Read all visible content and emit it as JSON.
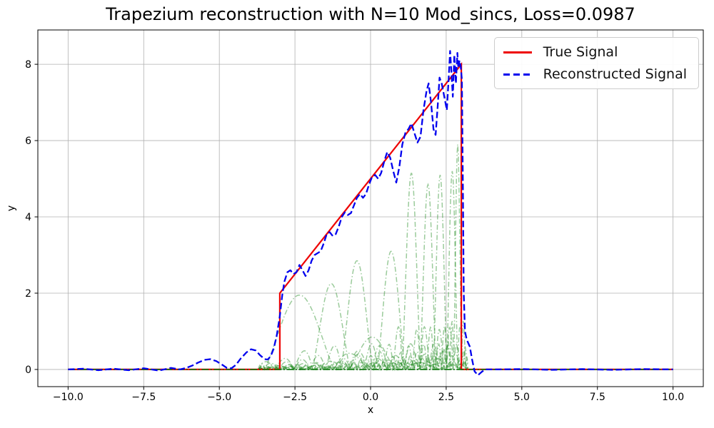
{
  "figure": {
    "title": "Trapezium reconstruction with N=10 Mod_sincs, Loss=0.0987",
    "xlabel": "x",
    "ylabel": "y",
    "background": "#ffffff"
  },
  "legend": {
    "position": "upper right",
    "items": [
      {
        "label": "True Signal",
        "color": "#ee0000",
        "line_style": "solid"
      },
      {
        "label": "Reconstructed Signal",
        "color": "#0000ee",
        "line_style": "dashed"
      }
    ]
  },
  "axes": {
    "grid": true,
    "grid_color": "#b0b0b0",
    "spine_color": "#000000",
    "tick_label_color": "#000000"
  },
  "chart_data": {
    "type": "line",
    "title": "Trapezium reconstruction with N=10 Mod_sincs, Loss=0.0987",
    "xlabel": "x",
    "ylabel": "y",
    "xlim": [
      -11,
      11
    ],
    "ylim": [
      -0.45,
      8.9
    ],
    "x_ticks": {
      "values": [
        -10,
        -7.5,
        -5,
        -2.5,
        0,
        2.5,
        5,
        7.5,
        10
      ],
      "labels": [
        "−10.0",
        "−7.5",
        "−5.0",
        "−2.5",
        "0.0",
        "2.5",
        "5.0",
        "7.5",
        "10.0"
      ]
    },
    "y_ticks": {
      "values": [
        0,
        2,
        4,
        6,
        8
      ],
      "labels": [
        "0",
        "2",
        "4",
        "6",
        "8"
      ]
    },
    "grid": true,
    "legend_position": "upper right",
    "series": [
      {
        "name": "True Signal",
        "color": "#ee0000",
        "style": "solid",
        "width": 2.2,
        "points": [
          [
            -10,
            0
          ],
          [
            -3,
            0
          ],
          [
            -3,
            2
          ],
          [
            3,
            8
          ],
          [
            3,
            0
          ],
          [
            10,
            0
          ]
        ]
      },
      {
        "name": "Reconstructed Signal",
        "color": "#0000ee",
        "style": "dashed",
        "width": 2.3,
        "points": [
          [
            -10,
            0
          ],
          [
            -9.5,
            0.02
          ],
          [
            -9,
            -0.02
          ],
          [
            -8.5,
            0.02
          ],
          [
            -8,
            -0.02
          ],
          [
            -7.5,
            0.03
          ],
          [
            -7,
            -0.03
          ],
          [
            -6.6,
            0.04
          ],
          [
            -6.3,
            0
          ],
          [
            -6.1,
            0.04
          ],
          [
            -5.9,
            0.1
          ],
          [
            -5.7,
            0.18
          ],
          [
            -5.5,
            0.25
          ],
          [
            -5.3,
            0.27
          ],
          [
            -5.1,
            0.22
          ],
          [
            -4.9,
            0.12
          ],
          [
            -4.75,
            0.04
          ],
          [
            -4.6,
            0.03
          ],
          [
            -4.45,
            0.12
          ],
          [
            -4.3,
            0.28
          ],
          [
            -4.1,
            0.45
          ],
          [
            -3.95,
            0.53
          ],
          [
            -3.8,
            0.5
          ],
          [
            -3.65,
            0.37
          ],
          [
            -3.5,
            0.27
          ],
          [
            -3.4,
            0.26
          ],
          [
            -3.3,
            0.35
          ],
          [
            -3.2,
            0.55
          ],
          [
            -3.1,
            0.9
          ],
          [
            -3,
            1.4
          ],
          [
            -2.92,
            1.95
          ],
          [
            -2.85,
            2.3
          ],
          [
            -2.75,
            2.55
          ],
          [
            -2.65,
            2.6
          ],
          [
            -2.55,
            2.5
          ],
          [
            -2.45,
            2.55
          ],
          [
            -2.35,
            2.74
          ],
          [
            -2.25,
            2.6
          ],
          [
            -2.15,
            2.45
          ],
          [
            -2.05,
            2.6
          ],
          [
            -1.95,
            2.85
          ],
          [
            -1.85,
            3
          ],
          [
            -1.75,
            3.05
          ],
          [
            -1.65,
            3.1
          ],
          [
            -1.55,
            3.3
          ],
          [
            -1.45,
            3.55
          ],
          [
            -1.35,
            3.6
          ],
          [
            -1.25,
            3.5
          ],
          [
            -1.15,
            3.55
          ],
          [
            -1.05,
            3.75
          ],
          [
            -0.95,
            4
          ],
          [
            -0.85,
            4.12
          ],
          [
            -0.75,
            4.05
          ],
          [
            -0.65,
            4.1
          ],
          [
            -0.55,
            4.3
          ],
          [
            -0.45,
            4.5
          ],
          [
            -0.35,
            4.6
          ],
          [
            -0.25,
            4.5
          ],
          [
            -0.15,
            4.6
          ],
          [
            -0.05,
            4.85
          ],
          [
            0.05,
            5.05
          ],
          [
            0.15,
            5.1
          ],
          [
            0.25,
            5
          ],
          [
            0.35,
            5.15
          ],
          [
            0.45,
            5.45
          ],
          [
            0.55,
            5.7
          ],
          [
            0.65,
            5.55
          ],
          [
            0.75,
            5.2
          ],
          [
            0.85,
            4.9
          ],
          [
            0.95,
            5.3
          ],
          [
            1.05,
            5.9
          ],
          [
            1.15,
            6.2
          ],
          [
            1.25,
            6.3
          ],
          [
            1.35,
            6.45
          ],
          [
            1.45,
            6.2
          ],
          [
            1.55,
            5.95
          ],
          [
            1.65,
            6.1
          ],
          [
            1.75,
            6.8
          ],
          [
            1.85,
            7.3
          ],
          [
            1.92,
            7.5
          ],
          [
            2,
            7
          ],
          [
            2.08,
            6.3
          ],
          [
            2.15,
            6.15
          ],
          [
            2.22,
            6.9
          ],
          [
            2.28,
            7.65
          ],
          [
            2.35,
            7.5
          ],
          [
            2.45,
            7.1
          ],
          [
            2.52,
            6.8
          ],
          [
            2.58,
            7.6
          ],
          [
            2.63,
            8.35
          ],
          [
            2.68,
            7.7
          ],
          [
            2.72,
            7.15
          ],
          [
            2.77,
            8.25
          ],
          [
            2.82,
            7.5
          ],
          [
            2.87,
            8.3
          ],
          [
            2.9,
            7.9
          ],
          [
            2.94,
            8.1
          ],
          [
            2.98,
            7.95
          ],
          [
            3.02,
            7.6
          ],
          [
            3.05,
            5
          ],
          [
            3.08,
            2
          ],
          [
            3.12,
            1
          ],
          [
            3.18,
            0.78
          ],
          [
            3.28,
            0.6
          ],
          [
            3.36,
            0.25
          ],
          [
            3.44,
            -0.05
          ],
          [
            3.55,
            -0.15
          ],
          [
            3.68,
            -0.06
          ],
          [
            3.8,
            0
          ],
          [
            4.2,
            0
          ],
          [
            5,
            0.01
          ],
          [
            6,
            -0.01
          ],
          [
            7,
            0.01
          ],
          [
            8,
            -0.01
          ],
          [
            9,
            0.01
          ],
          [
            10,
            0
          ]
        ]
      }
    ],
    "components": {
      "name": "Mod_sinc components",
      "count": 10,
      "style": "dashdot",
      "color": "#228B22",
      "opacity": 0.45,
      "width": 1.5,
      "x_range": [
        -3.72,
        3.24
      ],
      "params": [
        {
          "center": -2.35,
          "amplitude": 1.95,
          "half_width": 1.15
        },
        {
          "center": -1.3,
          "amplitude": 2.25,
          "half_width": 0.62
        },
        {
          "center": -0.45,
          "amplitude": 2.85,
          "half_width": 0.52
        },
        {
          "center": 0.68,
          "amplitude": 3.1,
          "half_width": 0.45
        },
        {
          "center": 1.35,
          "amplitude": 5.15,
          "half_width": 0.3
        },
        {
          "center": 1.9,
          "amplitude": 4.85,
          "half_width": 0.26
        },
        {
          "center": 2.3,
          "amplitude": 5.1,
          "half_width": 0.22
        },
        {
          "center": 2.7,
          "amplitude": 5.2,
          "half_width": 0.18
        },
        {
          "center": 2.88,
          "amplitude": 5.9,
          "half_width": 0.13
        },
        {
          "center": 0.05,
          "amplitude": 0.85,
          "half_width": 0.75
        }
      ],
      "baseline": {
        "y": 0,
        "x_range": [
          -10,
          10
        ],
        "color": "#117a11",
        "opacity": 0.9,
        "width": 1.8
      }
    }
  }
}
